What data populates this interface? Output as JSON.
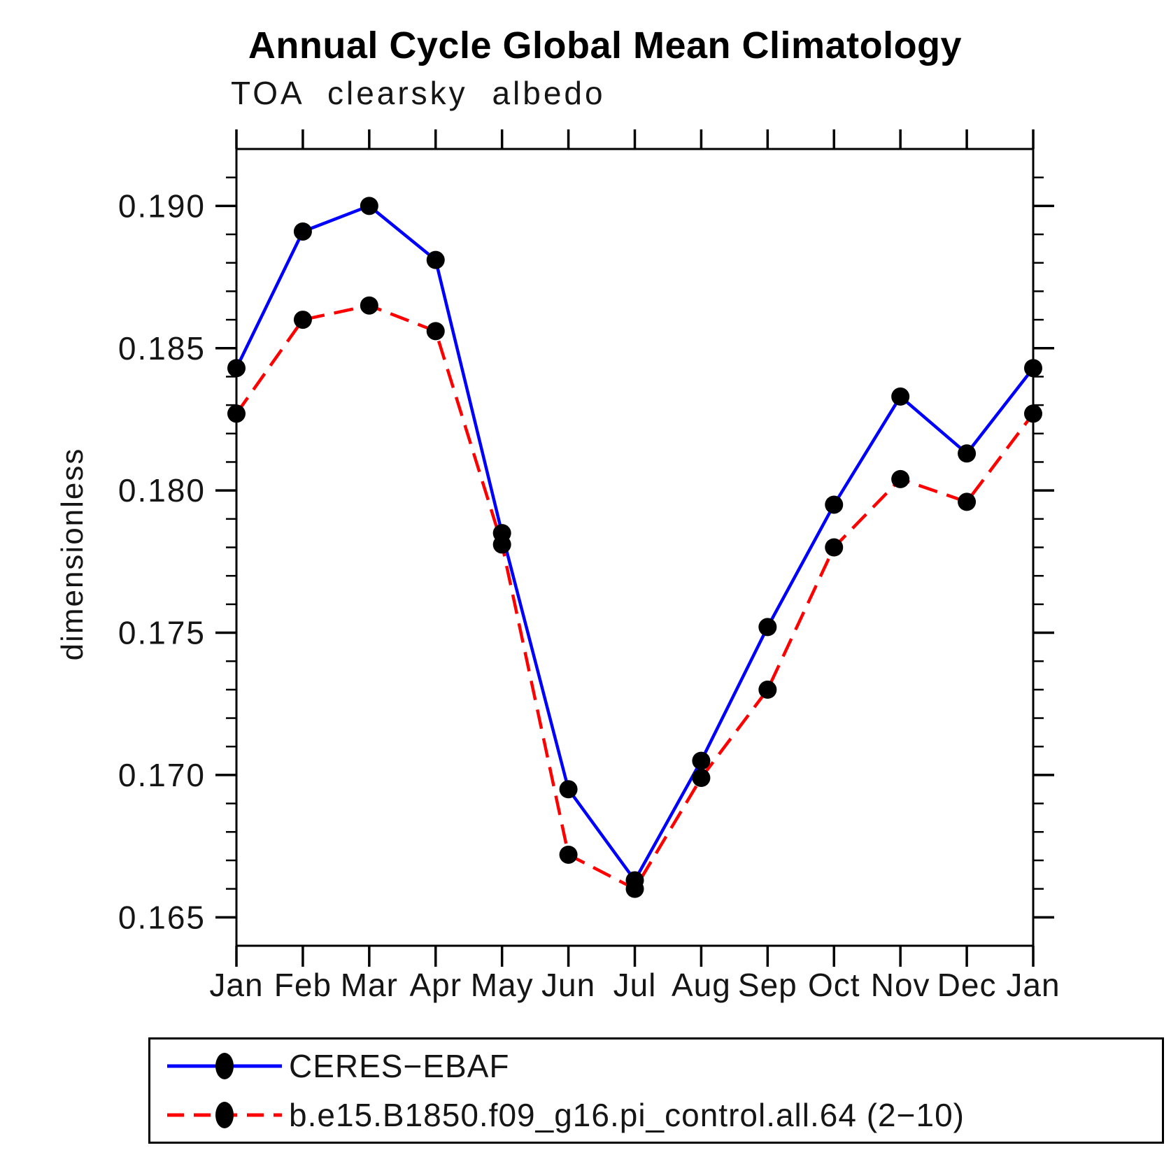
{
  "page": {
    "background": "#ffffff",
    "frame_color": "#000000"
  },
  "chart_data": {
    "type": "line",
    "title": "Annual Cycle Global Mean Climatology",
    "subtitle": "TOA clearsky albedo",
    "ylabel": "dimensionless",
    "xlabel": "",
    "grid": false,
    "legend_position": "bottom",
    "marker": "filled-circle",
    "marker_color": "#000000",
    "x_categories": [
      "Jan",
      "Feb",
      "Mar",
      "Apr",
      "May",
      "Jun",
      "Jul",
      "Aug",
      "Sep",
      "Oct",
      "Nov",
      "Dec",
      "Jan"
    ],
    "y_axis": {
      "range": [
        0.164,
        0.192
      ],
      "minor_step": 0.001,
      "major_ticks": [
        {
          "value": 0.165,
          "label": "0.165"
        },
        {
          "value": 0.17,
          "label": "0.170"
        },
        {
          "value": 0.175,
          "label": "0.175"
        },
        {
          "value": 0.18,
          "label": "0.180"
        },
        {
          "value": 0.185,
          "label": "0.185"
        },
        {
          "value": 0.19,
          "label": "0.190"
        }
      ]
    },
    "series": [
      {
        "name": "CERES−EBAF",
        "color": "#0000ff",
        "style": "solid",
        "values": [
          0.1843,
          0.1891,
          0.19,
          0.1881,
          0.1785,
          0.1695,
          0.1663,
          0.1705,
          0.1752,
          0.1795,
          0.1833,
          0.1813,
          0.1843
        ]
      },
      {
        "name": "b.e15.B1850.f09_g16.pi_control.all.64 (2−10)",
        "color": "#ff0000",
        "style": "dashed",
        "values": [
          0.1827,
          0.186,
          0.1865,
          0.1856,
          0.1781,
          0.1672,
          0.166,
          0.1699,
          0.173,
          0.178,
          0.1804,
          0.1796,
          0.1827
        ]
      }
    ]
  }
}
